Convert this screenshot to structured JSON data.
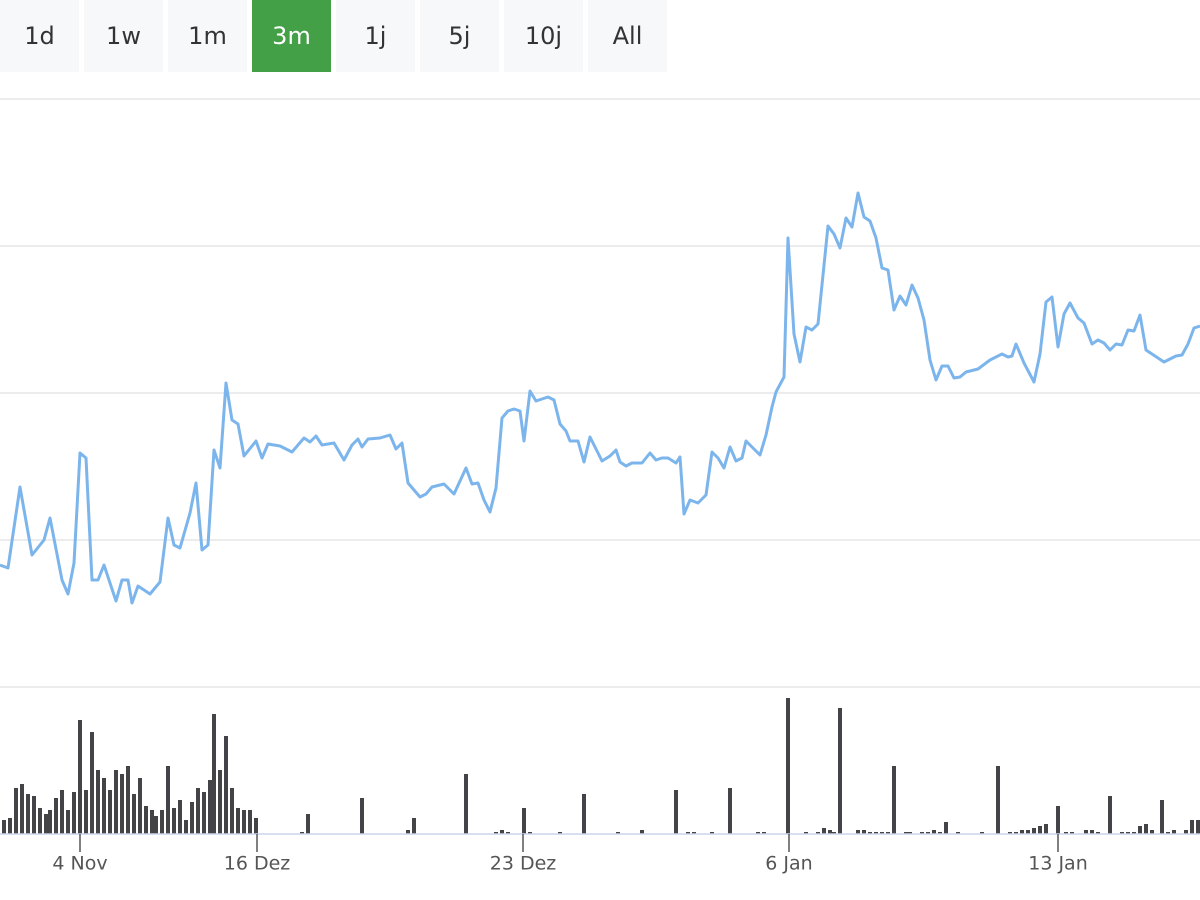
{
  "buttons": [
    "1d",
    "1w",
    "1m",
    "3m",
    "1j",
    "5j",
    "10j",
    "All"
  ],
  "selected": 3,
  "chart_data": [
    {
      "type": "line",
      "color": "#7cb5ec",
      "grid": true,
      "xlim": [
        0,
        1200
      ],
      "ylim": [
        0,
        588
      ],
      "yticks": [
        0,
        147,
        294,
        441,
        588
      ],
      "x": [
        0,
        8,
        20,
        32,
        44,
        50,
        62,
        68,
        74,
        80,
        86,
        92,
        98,
        104,
        116,
        122,
        128,
        132,
        138,
        150,
        160,
        168,
        174,
        180,
        190,
        196,
        202,
        208,
        214,
        220,
        226,
        232,
        238,
        244,
        256,
        262,
        268,
        280,
        292,
        304,
        310,
        316,
        322,
        334,
        344,
        352,
        358,
        362,
        368,
        380,
        390,
        396,
        402,
        408,
        420,
        426,
        432,
        444,
        454,
        466,
        472,
        478,
        484,
        490,
        496,
        502,
        508,
        514,
        520,
        524,
        530,
        536,
        548,
        554,
        560,
        566,
        570,
        578,
        584,
        590,
        602,
        610,
        616,
        620,
        626,
        632,
        642,
        650,
        656,
        662,
        668,
        676,
        680,
        684,
        690,
        698,
        706,
        712,
        718,
        724,
        730,
        736,
        742,
        746,
        752,
        760,
        766,
        772,
        776,
        784,
        788,
        794,
        800,
        806,
        812,
        818,
        828,
        834,
        840,
        846,
        852,
        858,
        864,
        870,
        876,
        882,
        888,
        894,
        900,
        906,
        912,
        918,
        924,
        930,
        936,
        942,
        948,
        954,
        960,
        966,
        978,
        990,
        1002,
        1008,
        1012,
        1016,
        1024,
        1034,
        1040,
        1046,
        1052,
        1058,
        1064,
        1070,
        1078,
        1084,
        1092,
        1098,
        1104,
        1110,
        1116,
        1122,
        1128,
        1134,
        1140,
        1146,
        1164,
        1176,
        1182,
        1188,
        1194,
        1200
      ],
      "values": [
        122,
        119,
        200,
        132,
        147,
        169,
        107,
        93,
        124,
        234,
        229,
        107,
        107,
        122,
        86,
        107,
        107,
        84,
        101,
        93,
        105,
        169,
        142,
        139,
        174,
        204,
        137,
        142,
        237,
        219,
        304,
        267,
        263,
        231,
        246,
        229,
        243,
        241,
        235,
        249,
        245,
        251,
        242,
        244,
        227,
        242,
        248,
        240,
        248,
        249,
        252,
        238,
        244,
        204,
        190,
        193,
        200,
        203,
        193,
        219,
        203,
        204,
        187,
        175,
        199,
        269,
        276,
        278,
        276,
        246,
        296,
        286,
        290,
        287,
        263,
        256,
        246,
        246,
        225,
        250,
        226,
        231,
        237,
        225,
        221,
        224,
        224,
        234,
        227,
        229,
        229,
        224,
        230,
        173,
        187,
        184,
        192,
        235,
        229,
        219,
        240,
        226,
        229,
        246,
        240,
        232,
        252,
        280,
        295,
        310,
        449,
        353,
        325,
        360,
        357,
        363,
        461,
        453,
        439,
        469,
        460,
        494,
        470,
        466,
        449,
        419,
        417,
        377,
        391,
        382,
        402,
        389,
        367,
        327,
        307,
        321,
        321,
        309,
        310,
        315,
        318,
        327,
        333,
        330,
        331,
        343,
        324,
        305,
        333,
        385,
        390,
        340,
        373,
        384,
        369,
        364,
        343,
        347,
        344,
        337,
        343,
        342,
        357,
        356,
        372,
        337,
        325,
        331,
        332,
        343,
        359,
        361
      ]
    },
    {
      "type": "bar",
      "color": "#434348",
      "xlim": [
        0,
        1200
      ],
      "ylim": [
        0,
        147
      ],
      "xticks": [
        {
          "value": 80,
          "label": "4 Nov"
        },
        {
          "value": 257,
          "label": "16 Dez"
        },
        {
          "value": 523,
          "label": "23 Dez"
        },
        {
          "value": 789,
          "label": "6 Jan"
        },
        {
          "value": 1058,
          "label": "13 Jan"
        }
      ],
      "x": [
        4,
        10,
        16,
        22,
        28,
        34,
        40,
        46,
        50,
        56,
        62,
        68,
        74,
        80,
        86,
        92,
        98,
        104,
        110,
        116,
        122,
        128,
        134,
        140,
        146,
        152,
        156,
        162,
        168,
        174,
        180,
        186,
        192,
        198,
        204,
        210,
        214,
        220,
        226,
        232,
        238,
        244,
        250,
        256,
        302,
        308,
        362,
        408,
        414,
        466,
        496,
        502,
        508,
        524,
        530,
        560,
        584,
        618,
        642,
        676,
        688,
        694,
        712,
        730,
        758,
        764,
        788,
        806,
        818,
        824,
        830,
        834,
        840,
        858,
        864,
        870,
        876,
        882,
        888,
        894,
        906,
        910,
        922,
        928,
        934,
        940,
        946,
        958,
        982,
        998,
        1010,
        1016,
        1022,
        1028,
        1034,
        1040,
        1046,
        1058,
        1066,
        1072,
        1086,
        1092,
        1098,
        1110,
        1122,
        1128,
        1134,
        1140,
        1146,
        1152,
        1162,
        1168,
        1174,
        1186,
        1192,
        1198
      ],
      "values": [
        14,
        16,
        46,
        50,
        40,
        38,
        26,
        20,
        24,
        36,
        44,
        24,
        42,
        114,
        44,
        102,
        64,
        56,
        44,
        64,
        60,
        68,
        40,
        56,
        28,
        24,
        18,
        24,
        68,
        26,
        34,
        14,
        32,
        46,
        42,
        54,
        120,
        64,
        98,
        46,
        26,
        24,
        24,
        16,
        2,
        20,
        36,
        4,
        16,
        60,
        2,
        4,
        2,
        26,
        2,
        2,
        40,
        2,
        4,
        44,
        2,
        2,
        2,
        46,
        2,
        2,
        136,
        2,
        2,
        6,
        4,
        2,
        126,
        4,
        4,
        2,
        2,
        2,
        2,
        68,
        2,
        2,
        2,
        2,
        4,
        2,
        12,
        2,
        2,
        68,
        2,
        2,
        4,
        4,
        6,
        8,
        10,
        28,
        2,
        2,
        4,
        4,
        2,
        38,
        2,
        2,
        2,
        8,
        10,
        4,
        34,
        2,
        4,
        4,
        14,
        14
      ]
    }
  ]
}
